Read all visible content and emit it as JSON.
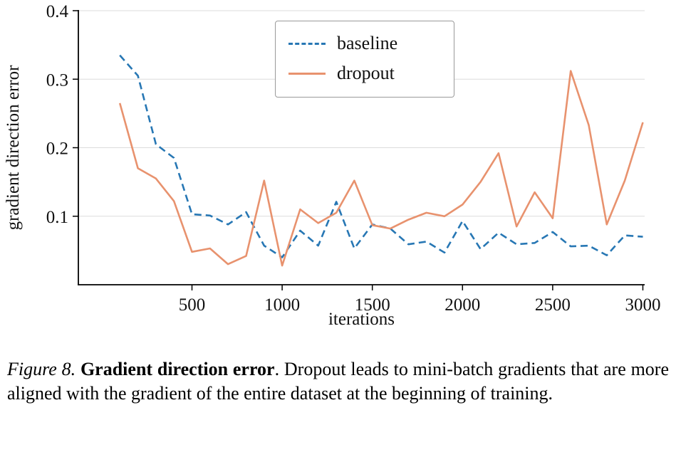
{
  "figure": {
    "caption": {
      "label": "Figure 8.",
      "title": "Gradient direction error",
      "text": ". Dropout leads to mini-batch gradients that are more aligned with the gradient of the entire dataset at the beginning of training."
    }
  },
  "chart_data": {
    "type": "line",
    "title": "",
    "xlabel": "iterations",
    "ylabel": "gradient direction error",
    "xlim": [
      -130,
      3010
    ],
    "ylim": [
      0,
      0.4
    ],
    "x_ticks": [
      500,
      1000,
      1500,
      2000,
      2500,
      3000
    ],
    "y_ticks": [
      0.1,
      0.2,
      0.3,
      0.4
    ],
    "grid": true,
    "legend_position": "upper center",
    "colors": {
      "grid": "#dcdcdc",
      "axis": "#000000"
    },
    "x": [
      100,
      200,
      300,
      400,
      500,
      600,
      700,
      800,
      900,
      1000,
      1100,
      1200,
      1300,
      1400,
      1500,
      1600,
      1700,
      1800,
      1900,
      2000,
      2100,
      2200,
      2300,
      2400,
      2500,
      2600,
      2700,
      2800,
      2900,
      3000
    ],
    "series": [
      {
        "name": "baseline",
        "style": "dashed",
        "color": "#2777b4",
        "values": [
          0.335,
          0.305,
          0.205,
          0.185,
          0.103,
          0.101,
          0.088,
          0.106,
          0.057,
          0.04,
          0.079,
          0.057,
          0.121,
          0.053,
          0.088,
          0.082,
          0.059,
          0.063,
          0.047,
          0.093,
          0.052,
          0.076,
          0.059,
          0.061,
          0.077,
          0.056,
          0.057,
          0.043,
          0.072,
          0.07
        ]
      },
      {
        "name": "dropout",
        "style": "solid",
        "color": "#e8926e",
        "values": [
          0.265,
          0.17,
          0.155,
          0.122,
          0.048,
          0.053,
          0.03,
          0.042,
          0.152,
          0.028,
          0.11,
          0.09,
          0.105,
          0.152,
          0.087,
          0.082,
          0.095,
          0.105,
          0.1,
          0.117,
          0.15,
          0.192,
          0.085,
          0.135,
          0.097,
          0.312,
          0.233,
          0.088,
          0.152,
          0.237
        ]
      }
    ]
  }
}
